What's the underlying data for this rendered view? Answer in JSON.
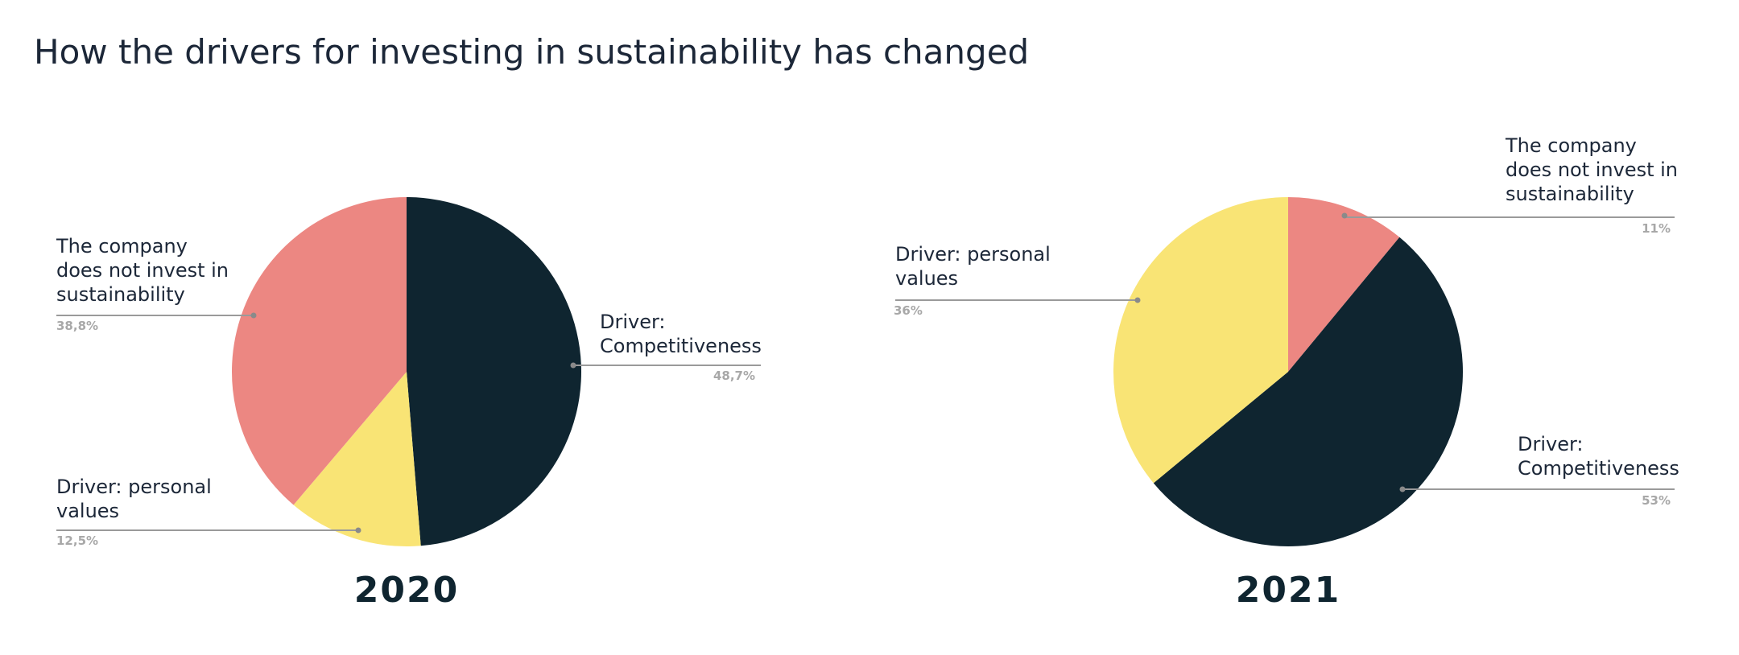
{
  "title": "How the drivers for investing in sustainability has changed",
  "colors": {
    "no_invest": "#ec8782",
    "personal": "#f9e475",
    "competitiveness": "#0f2530"
  },
  "chart_data": [
    {
      "type": "pie",
      "year": "2020",
      "slices": [
        {
          "key": "competitiveness",
          "label": [
            "Driver:",
            "Competitiveness"
          ],
          "value": 48.7,
          "value_label": "48,7%",
          "color": "#0f2530"
        },
        {
          "key": "personal",
          "label": [
            "Driver: personal",
            "values"
          ],
          "value": 12.5,
          "value_label": "12,5%",
          "color": "#f9e475"
        },
        {
          "key": "no_invest",
          "label": [
            "The company",
            "does not invest in",
            "sustainability"
          ],
          "value": 38.8,
          "value_label": "38,8%",
          "color": "#ec8782"
        }
      ]
    },
    {
      "type": "pie",
      "year": "2021",
      "slices": [
        {
          "key": "no_invest",
          "label": [
            "The company",
            "does not invest in",
            "sustainability"
          ],
          "value": 11,
          "value_label": "11%",
          "color": "#ec8782"
        },
        {
          "key": "competitiveness",
          "label": [
            "Driver:",
            "Competitiveness"
          ],
          "value": 53,
          "value_label": "53%",
          "color": "#0f2530"
        },
        {
          "key": "personal",
          "label": [
            "Driver: personal",
            "values"
          ],
          "value": 36,
          "value_label": "36%",
          "color": "#f9e475"
        }
      ]
    }
  ]
}
